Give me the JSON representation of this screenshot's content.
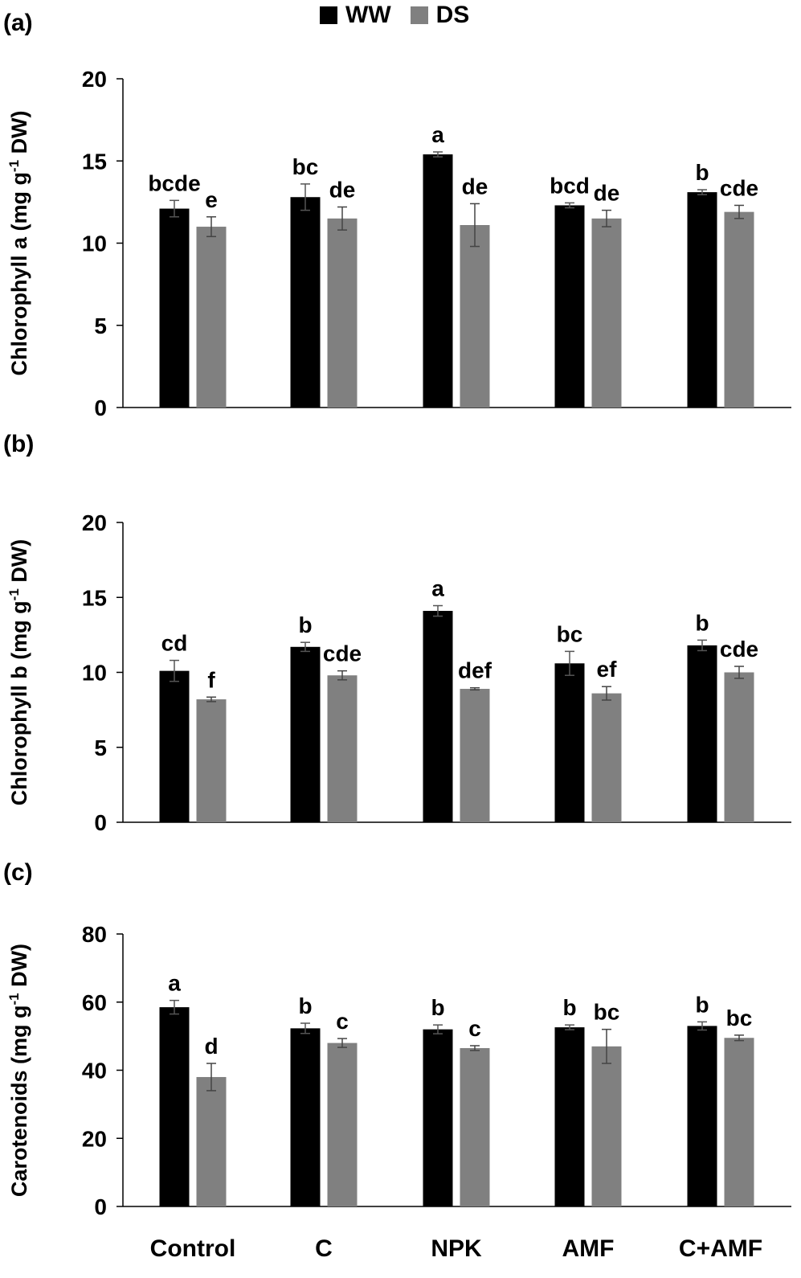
{
  "legend": {
    "items": [
      {
        "label": "WW",
        "color": "#000000"
      },
      {
        "label": "DS",
        "color": "#808080"
      }
    ]
  },
  "chart_data": [
    {
      "type": "bar",
      "panel_label": "(a)",
      "ylabel_main": "Chlorophyll a (mg g",
      "ylabel_sup": "-1",
      "ylabel_end": " DW)",
      "ylim": [
        0,
        20
      ],
      "yticks": [
        0,
        5,
        10,
        15,
        20
      ],
      "categories": [
        "Control",
        "C",
        "NPK",
        "AMF",
        "C+AMF"
      ],
      "show_xlabels": false,
      "series": [
        {
          "name": "WW",
          "color": "#000000",
          "values": [
            12.1,
            12.8,
            15.4,
            12.3,
            13.1
          ],
          "errors": [
            0.5,
            0.8,
            0.15,
            0.15,
            0.15
          ],
          "letters": [
            "bcde",
            "bc",
            "a",
            "bcd",
            "b"
          ]
        },
        {
          "name": "DS",
          "color": "#808080",
          "values": [
            11.0,
            11.5,
            11.1,
            11.5,
            11.9
          ],
          "errors": [
            0.6,
            0.7,
            1.3,
            0.5,
            0.4
          ],
          "letters": [
            "e",
            "de",
            "de",
            "de",
            "cde"
          ]
        }
      ]
    },
    {
      "type": "bar",
      "panel_label": "(b)",
      "ylabel_main": "Chlorophyll b (mg g",
      "ylabel_sup": "-1",
      "ylabel_end": " DW)",
      "ylim": [
        0,
        20
      ],
      "yticks": [
        0,
        5,
        10,
        15,
        20
      ],
      "categories": [
        "Control",
        "C",
        "NPK",
        "AMF",
        "C+AMF"
      ],
      "show_xlabels": false,
      "series": [
        {
          "name": "WW",
          "color": "#000000",
          "values": [
            10.1,
            11.7,
            14.1,
            10.6,
            11.8
          ],
          "errors": [
            0.7,
            0.3,
            0.35,
            0.8,
            0.35
          ],
          "letters": [
            "cd",
            "b",
            "a",
            "bc",
            "b"
          ]
        },
        {
          "name": "DS",
          "color": "#808080",
          "values": [
            8.2,
            9.8,
            8.9,
            8.6,
            10.0
          ],
          "errors": [
            0.15,
            0.3,
            0.07,
            0.45,
            0.4
          ],
          "letters": [
            "f",
            "cde",
            "def",
            "ef",
            "cde"
          ]
        }
      ]
    },
    {
      "type": "bar",
      "panel_label": "(c)",
      "ylabel_main": "Carotenoids (mg g",
      "ylabel_sup": "-1",
      "ylabel_end": " DW)",
      "ylim": [
        0,
        80
      ],
      "yticks": [
        0,
        20,
        40,
        60,
        80
      ],
      "categories": [
        "Control",
        "C",
        "NPK",
        "AMF",
        "C+AMF"
      ],
      "show_xlabels": true,
      "series": [
        {
          "name": "WW",
          "color": "#000000",
          "values": [
            58.5,
            52.3,
            52.0,
            52.6,
            53.0
          ],
          "errors": [
            2.0,
            1.5,
            1.3,
            0.7,
            1.2
          ],
          "letters": [
            "a",
            "b",
            "b",
            "b",
            "b"
          ]
        },
        {
          "name": "DS",
          "color": "#808080",
          "values": [
            38.0,
            48.0,
            46.5,
            47.0,
            49.5
          ],
          "errors": [
            4.0,
            1.3,
            0.7,
            5.0,
            0.8
          ],
          "letters": [
            "d",
            "c",
            "c",
            "bc",
            "bc"
          ]
        }
      ]
    }
  ]
}
